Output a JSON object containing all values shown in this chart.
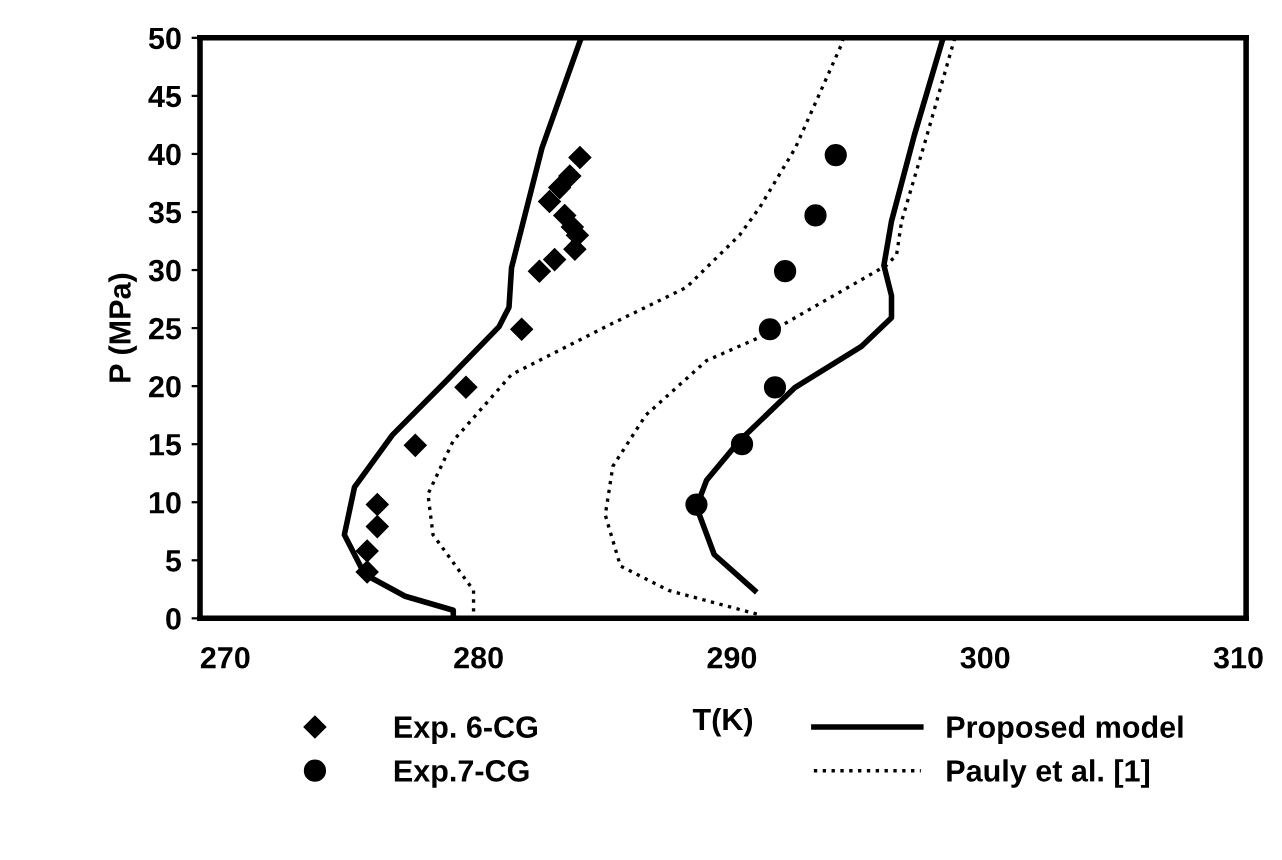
{
  "chart_data": {
    "type": "line",
    "xlabel": "T(K)",
    "ylabel": "P (MPa)",
    "xlim": [
      269,
      310.3
    ],
    "ylim": [
      0,
      50
    ],
    "xticks": [
      270,
      280,
      290,
      300,
      310
    ],
    "yticks": [
      0,
      5,
      10,
      15,
      20,
      25,
      30,
      35,
      40,
      45,
      50
    ],
    "grid": false,
    "legend": "bottom",
    "series": [
      {
        "name": "Exp. 6-CG",
        "type": "scatter",
        "marker": "diamond",
        "color": "#000000",
        "x": [
          275.6,
          275.6,
          276.0,
          276.0,
          277.5,
          279.5,
          281.7,
          282.4,
          283.0,
          283.8,
          283.9,
          283.7,
          283.4,
          282.8,
          283.2,
          283.6,
          284.0
        ],
        "values": [
          4.0,
          5.8,
          7.9,
          9.8,
          14.9,
          19.9,
          24.9,
          29.9,
          30.9,
          31.8,
          33.0,
          33.7,
          34.7,
          35.9,
          37.1,
          38.1,
          39.7
        ]
      },
      {
        "name": "Exp.7-CG",
        "type": "scatter",
        "marker": "circle",
        "color": "#000000",
        "x": [
          288.6,
          290.4,
          291.7,
          291.5,
          292.1,
          293.3,
          294.1
        ],
        "values": [
          9.8,
          15.0,
          19.9,
          24.9,
          29.9,
          34.7,
          39.9
        ]
      },
      {
        "name": "Proposed model",
        "line_style": "solid",
        "color": "#000000",
        "x": [
          284.0,
          282.5,
          281.3,
          281.2,
          280.8,
          278.7,
          276.6,
          275.1,
          274.7,
          275.5,
          277.1,
          279.0,
          279.0
        ],
        "values": [
          49.7,
          40.5,
          30.2,
          26.8,
          25.1,
          20.4,
          15.8,
          11.3,
          7.2,
          3.8,
          1.9,
          0.7,
          0.1
        ]
      },
      {
        "line_style": "solid",
        "color": "#000000",
        "x": [
          298.3,
          297.2,
          296.3,
          296.0,
          296.3,
          296.3,
          295.1,
          292.5,
          290.3,
          289.0,
          288.6,
          289.3,
          290.9
        ],
        "values": [
          49.7,
          41.6,
          34.2,
          30.4,
          27.8,
          25.9,
          23.4,
          19.9,
          15.3,
          11.9,
          9.6,
          5.5,
          2.4
        ]
      },
      {
        "name": "Pauly et al. [1]",
        "line_style": "dotted",
        "color": "#000000",
        "x": [
          294.4,
          294.3,
          292.5,
          291.1,
          290.3,
          288.2,
          285.0,
          281.3,
          279.0,
          278.0,
          278.2,
          279.8,
          279.8
        ],
        "values": [
          50,
          49.3,
          40.5,
          35.4,
          33.0,
          28.5,
          25.1,
          21.0,
          15.3,
          10.7,
          7.2,
          2.4,
          0.5
        ]
      },
      {
        "line_style": "dotted",
        "color": "#000000",
        "x": [
          298.8,
          297.7,
          296.7,
          296.5,
          296.1,
          291.3,
          289.0,
          286.6,
          285.3,
          285.0,
          285.6,
          287.5,
          291.1
        ],
        "values": [
          50,
          41.6,
          34.2,
          31.3,
          30.4,
          24.4,
          22.2,
          17.5,
          13.1,
          8.9,
          4.5,
          2.4,
          0.3
        ]
      }
    ]
  }
}
